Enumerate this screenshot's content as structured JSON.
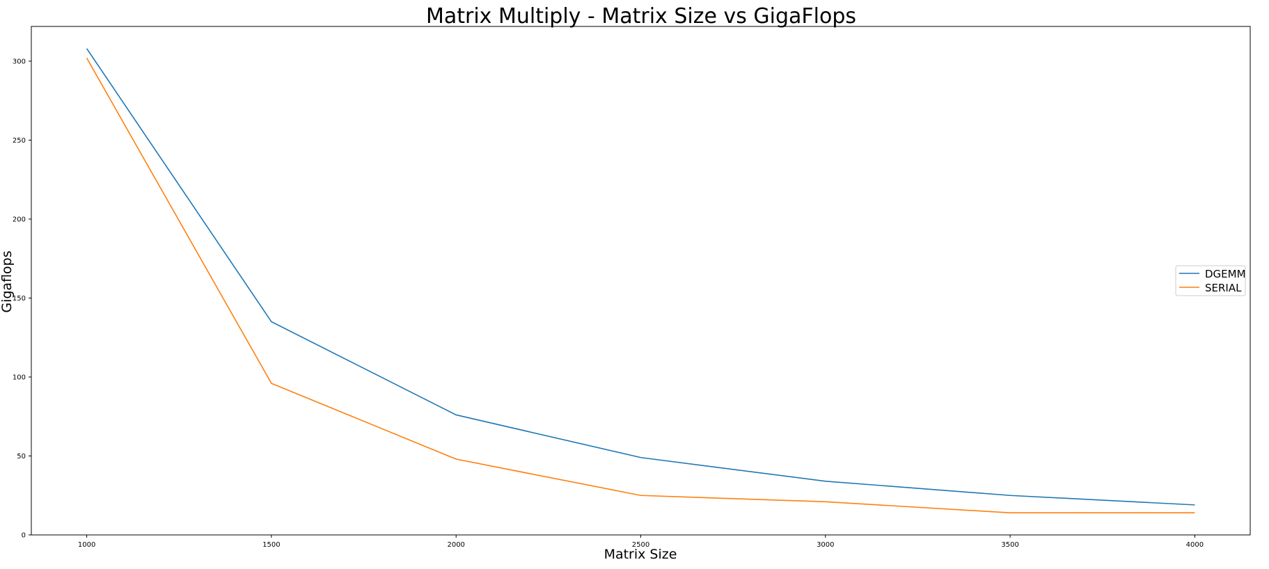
{
  "chart_data": {
    "type": "line",
    "title": "Matrix Multiply - Matrix Size vs GigaFlops",
    "xlabel": "Matrix Size",
    "ylabel": "Gigaflops",
    "x": [
      1000,
      1500,
      2000,
      2500,
      3000,
      3500,
      4000
    ],
    "xlim": [
      850,
      4150
    ],
    "ylim": [
      0,
      322
    ],
    "xticks": [
      1000,
      1500,
      2000,
      2500,
      3000,
      3500,
      4000
    ],
    "yticks": [
      0,
      50,
      100,
      150,
      200,
      250,
      300
    ],
    "grid": false,
    "legend_position": "center-right",
    "series": [
      {
        "name": "DGEMM",
        "color": "#1f77b4",
        "values": [
          308,
          135,
          76,
          49,
          34,
          25,
          19
        ]
      },
      {
        "name": "SERIAL",
        "color": "#ff7f0e",
        "values": [
          302,
          96,
          48,
          25,
          21,
          14,
          14
        ]
      }
    ]
  }
}
